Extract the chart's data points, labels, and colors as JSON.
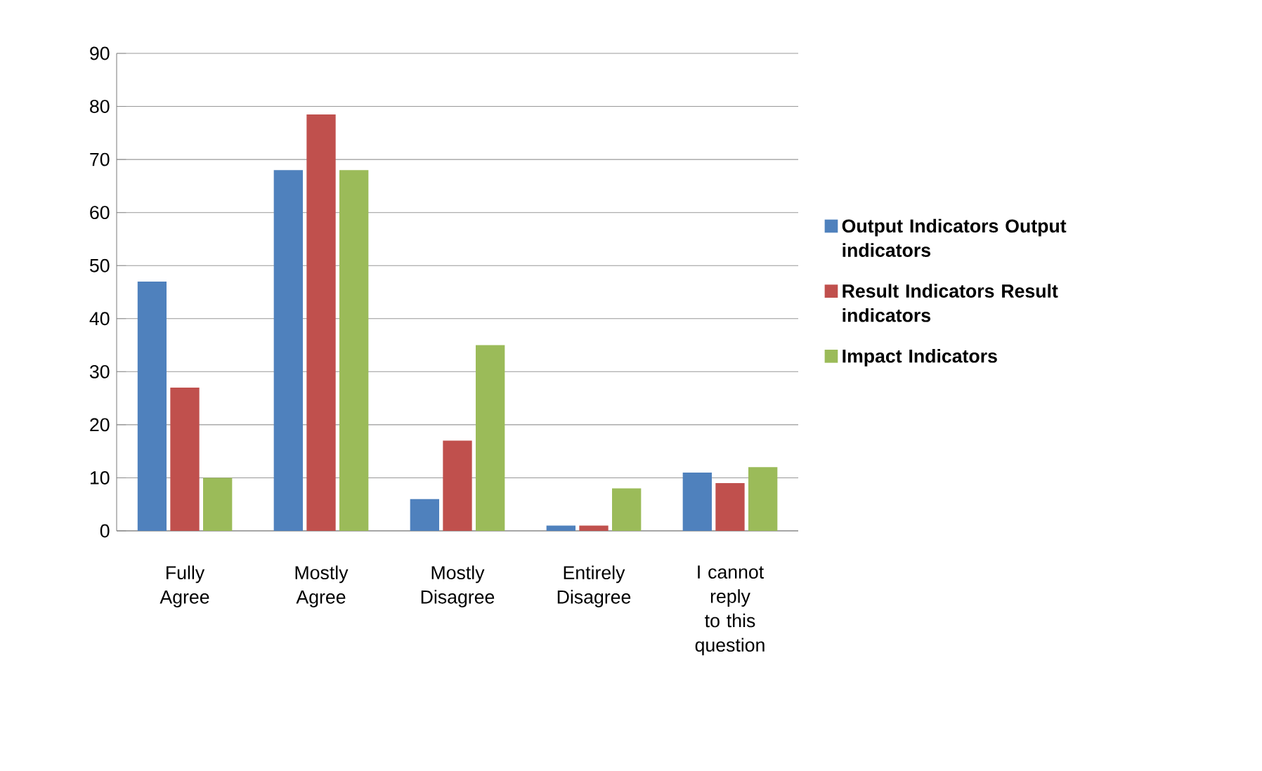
{
  "chart_data": {
    "type": "bar",
    "categories": [
      "Fully Agree",
      "Mostly Agree",
      "Mostly Disagree",
      "Entirely Disagree",
      "I cannot reply to this question"
    ],
    "series": [
      {
        "name": "Output Indicators Output indicators",
        "color": "#4f81bd",
        "values": [
          47,
          68,
          6,
          1,
          11
        ]
      },
      {
        "name": "Result Indicators Result indicators",
        "color": "#c0504d",
        "values": [
          27,
          78.5,
          17,
          1,
          9
        ]
      },
      {
        "name": "Impact Indicators",
        "color": "#9bbb59",
        "values": [
          10,
          68,
          35,
          8,
          12
        ]
      }
    ],
    "ylim": [
      0,
      90
    ],
    "yticks": [
      0,
      10,
      20,
      30,
      40,
      50,
      60,
      70,
      80,
      90
    ],
    "grid": "y",
    "legend": "right"
  }
}
